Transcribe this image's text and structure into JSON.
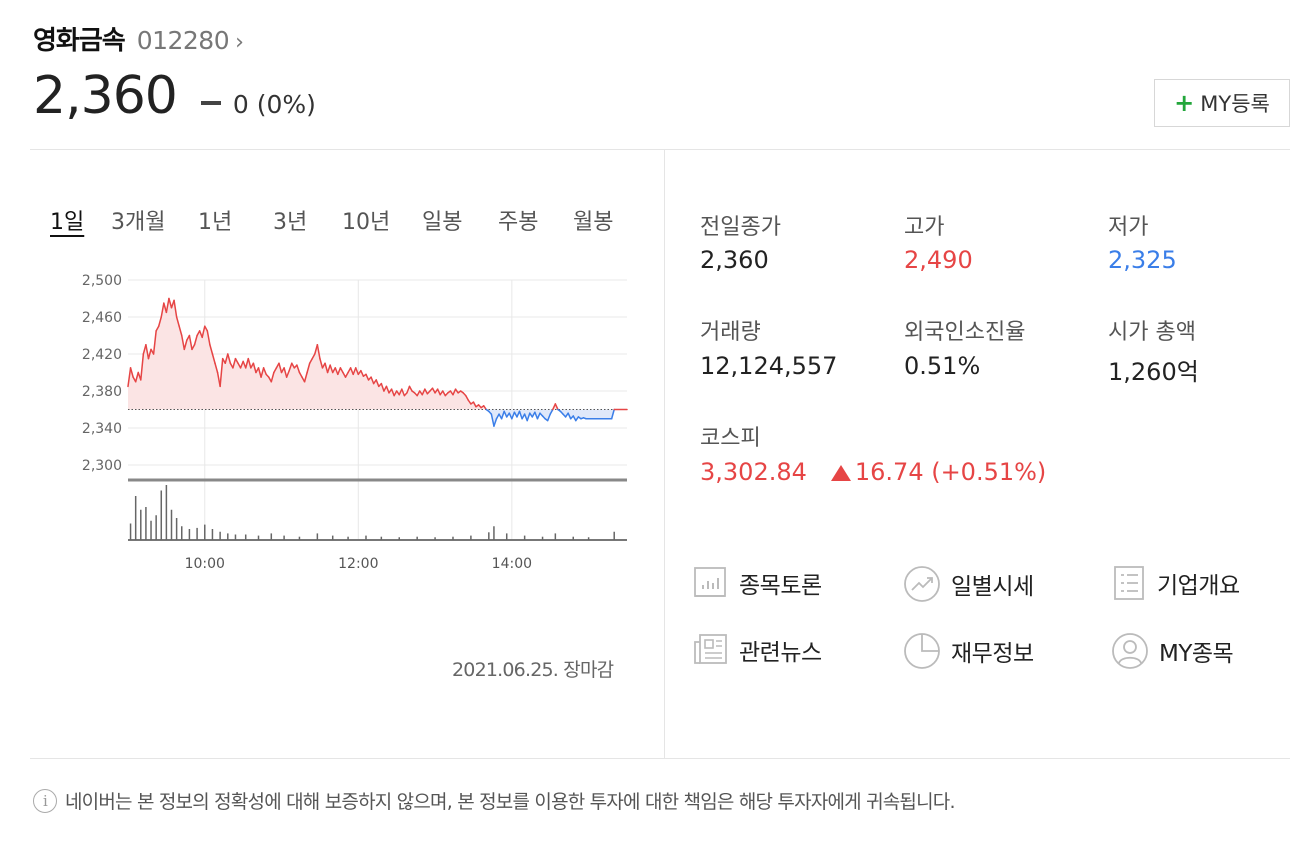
{
  "stock": {
    "name": "영화금속",
    "code": "012280",
    "price": "2,360",
    "change": "0 (0%)"
  },
  "my_button": "MY등록",
  "tabs": [
    "1일",
    "3개월",
    "1년",
    "3년",
    "10년",
    "일봉",
    "주봉",
    "월봉"
  ],
  "stats": {
    "prev_close": {
      "label": "전일종가",
      "value": "2,360"
    },
    "high": {
      "label": "고가",
      "value": "2,490"
    },
    "low": {
      "label": "저가",
      "value": "2,325"
    },
    "volume": {
      "label": "거래량",
      "value": "12,124,557"
    },
    "foreign": {
      "label": "외국인소진율",
      "value": "0.51%"
    },
    "market_cap": {
      "label": "시가 총액",
      "value": "1,260억"
    },
    "kospi": {
      "label": "코스피",
      "value": "3,302.84",
      "change": "16.74 (+0.51%)"
    }
  },
  "links": {
    "discussion": "종목토론",
    "daily_price": "일별시세",
    "company": "기업개요",
    "news": "관련뉴스",
    "finance": "재무정보",
    "my_stocks": "MY종목"
  },
  "chart_date": "2021.06.25. 장마감",
  "notice": "네이버는 본 정보의 정확성에 대해 보증하지 않으며, 본 정보를 이용한 투자에 대한 책임은 해당 투자자에게 귀속됩니다.",
  "colors": {
    "up": "#e64545",
    "down": "#3a7ee8",
    "fill_up": "#fbe4e4",
    "fill_down": "#dfe8fa"
  },
  "chart_data": {
    "type": "line",
    "x_label_ticks": [
      "10:00",
      "12:00",
      "14:00"
    ],
    "y_ticks": [
      "2,500",
      "2,460",
      "2,420",
      "2,380",
      "2,340",
      "2,300"
    ],
    "ylim": [
      2300,
      2500
    ],
    "baseline": 2360,
    "session": [
      "09:00",
      "15:30"
    ],
    "price_series": [
      [
        "09:00",
        2385
      ],
      [
        "09:02",
        2405
      ],
      [
        "09:04",
        2395
      ],
      [
        "09:06",
        2390
      ],
      [
        "09:08",
        2400
      ],
      [
        "09:10",
        2392
      ],
      [
        "09:12",
        2420
      ],
      [
        "09:14",
        2430
      ],
      [
        "09:16",
        2415
      ],
      [
        "09:18",
        2425
      ],
      [
        "09:20",
        2420
      ],
      [
        "09:22",
        2445
      ],
      [
        "09:24",
        2450
      ],
      [
        "09:26",
        2460
      ],
      [
        "09:28",
        2475
      ],
      [
        "09:30",
        2465
      ],
      [
        "09:32",
        2480
      ],
      [
        "09:34",
        2470
      ],
      [
        "09:36",
        2478
      ],
      [
        "09:38",
        2460
      ],
      [
        "09:40",
        2450
      ],
      [
        "09:42",
        2440
      ],
      [
        "09:44",
        2425
      ],
      [
        "09:46",
        2435
      ],
      [
        "09:48",
        2440
      ],
      [
        "09:50",
        2425
      ],
      [
        "09:52",
        2430
      ],
      [
        "09:54",
        2440
      ],
      [
        "09:56",
        2445
      ],
      [
        "09:58",
        2438
      ],
      [
        "10:00",
        2450
      ],
      [
        "10:02",
        2445
      ],
      [
        "10:04",
        2430
      ],
      [
        "10:06",
        2420
      ],
      [
        "10:08",
        2410
      ],
      [
        "10:10",
        2400
      ],
      [
        "10:12",
        2385
      ],
      [
        "10:14",
        2415
      ],
      [
        "10:16",
        2410
      ],
      [
        "10:18",
        2420
      ],
      [
        "10:20",
        2410
      ],
      [
        "10:22",
        2405
      ],
      [
        "10:24",
        2415
      ],
      [
        "10:26",
        2410
      ],
      [
        "10:28",
        2405
      ],
      [
        "10:30",
        2412
      ],
      [
        "10:32",
        2405
      ],
      [
        "10:34",
        2415
      ],
      [
        "10:36",
        2405
      ],
      [
        "10:38",
        2410
      ],
      [
        "10:40",
        2400
      ],
      [
        "10:42",
        2405
      ],
      [
        "10:44",
        2395
      ],
      [
        "10:46",
        2405
      ],
      [
        "10:48",
        2398
      ],
      [
        "10:50",
        2395
      ],
      [
        "10:52",
        2390
      ],
      [
        "10:54",
        2400
      ],
      [
        "10:56",
        2405
      ],
      [
        "10:58",
        2410
      ],
      [
        "11:00",
        2400
      ],
      [
        "11:02",
        2405
      ],
      [
        "11:04",
        2395
      ],
      [
        "11:06",
        2402
      ],
      [
        "11:08",
        2410
      ],
      [
        "11:10",
        2405
      ],
      [
        "11:12",
        2408
      ],
      [
        "11:14",
        2400
      ],
      [
        "11:16",
        2395
      ],
      [
        "11:18",
        2390
      ],
      [
        "11:20",
        2400
      ],
      [
        "11:22",
        2410
      ],
      [
        "11:24",
        2415
      ],
      [
        "11:26",
        2420
      ],
      [
        "11:28",
        2430
      ],
      [
        "11:30",
        2415
      ],
      [
        "11:32",
        2405
      ],
      [
        "11:34",
        2410
      ],
      [
        "11:36",
        2400
      ],
      [
        "11:38",
        2408
      ],
      [
        "11:40",
        2400
      ],
      [
        "11:42",
        2405
      ],
      [
        "11:44",
        2398
      ],
      [
        "11:46",
        2405
      ],
      [
        "11:48",
        2400
      ],
      [
        "11:50",
        2395
      ],
      [
        "11:52",
        2400
      ],
      [
        "11:54",
        2405
      ],
      [
        "11:56",
        2398
      ],
      [
        "11:58",
        2405
      ],
      [
        "12:00",
        2398
      ],
      [
        "12:02",
        2402
      ],
      [
        "12:04",
        2396
      ],
      [
        "12:06",
        2398
      ],
      [
        "12:08",
        2392
      ],
      [
        "12:10",
        2395
      ],
      [
        "12:12",
        2388
      ],
      [
        "12:14",
        2392
      ],
      [
        "12:16",
        2385
      ],
      [
        "12:18",
        2388
      ],
      [
        "12:20",
        2380
      ],
      [
        "12:22",
        2385
      ],
      [
        "12:24",
        2378
      ],
      [
        "12:26",
        2382
      ],
      [
        "12:28",
        2375
      ],
      [
        "12:30",
        2380
      ],
      [
        "12:32",
        2376
      ],
      [
        "12:34",
        2382
      ],
      [
        "12:36",
        2375
      ],
      [
        "12:38",
        2378
      ],
      [
        "12:40",
        2385
      ],
      [
        "12:42",
        2380
      ],
      [
        "12:44",
        2378
      ],
      [
        "12:46",
        2375
      ],
      [
        "12:48",
        2380
      ],
      [
        "12:50",
        2376
      ],
      [
        "12:52",
        2382
      ],
      [
        "12:54",
        2377
      ],
      [
        "12:56",
        2380
      ],
      [
        "12:58",
        2383
      ],
      [
        "13:00",
        2378
      ],
      [
        "13:02",
        2382
      ],
      [
        "13:04",
        2376
      ],
      [
        "13:06",
        2380
      ],
      [
        "13:08",
        2375
      ],
      [
        "13:10",
        2378
      ],
      [
        "13:12",
        2380
      ],
      [
        "13:14",
        2376
      ],
      [
        "13:16",
        2382
      ],
      [
        "13:18",
        2378
      ],
      [
        "13:20",
        2380
      ],
      [
        "13:22",
        2378
      ],
      [
        "13:24",
        2375
      ],
      [
        "13:26",
        2370
      ],
      [
        "13:28",
        2366
      ],
      [
        "13:30",
        2368
      ],
      [
        "13:32",
        2363
      ],
      [
        "13:34",
        2365
      ],
      [
        "13:36",
        2362
      ],
      [
        "13:38",
        2364
      ],
      [
        "13:40",
        2360
      ],
      [
        "13:42",
        2358
      ],
      [
        "13:44",
        2355
      ],
      [
        "13:46",
        2342
      ],
      [
        "13:48",
        2350
      ],
      [
        "13:50",
        2355
      ],
      [
        "13:52",
        2350
      ],
      [
        "13:54",
        2358
      ],
      [
        "13:56",
        2352
      ],
      [
        "13:58",
        2356
      ],
      [
        "14:00",
        2350
      ],
      [
        "14:02",
        2357
      ],
      [
        "14:04",
        2352
      ],
      [
        "14:06",
        2358
      ],
      [
        "14:08",
        2350
      ],
      [
        "14:10",
        2355
      ],
      [
        "14:12",
        2348
      ],
      [
        "14:14",
        2356
      ],
      [
        "14:16",
        2352
      ],
      [
        "14:18",
        2357
      ],
      [
        "14:20",
        2350
      ],
      [
        "14:22",
        2356
      ],
      [
        "14:24",
        2353
      ],
      [
        "14:26",
        2350
      ],
      [
        "14:28",
        2348
      ],
      [
        "14:30",
        2355
      ],
      [
        "14:32",
        2360
      ],
      [
        "14:34",
        2366
      ],
      [
        "14:36",
        2360
      ],
      [
        "14:38",
        2358
      ],
      [
        "14:40",
        2355
      ],
      [
        "14:42",
        2352
      ],
      [
        "14:44",
        2356
      ],
      [
        "14:46",
        2350
      ],
      [
        "14:48",
        2353
      ],
      [
        "14:50",
        2348
      ],
      [
        "14:52",
        2352
      ],
      [
        "14:54",
        2350
      ],
      [
        "14:56",
        2351
      ],
      [
        "14:58",
        2350
      ],
      [
        "15:00",
        2350
      ],
      [
        "15:10",
        2350
      ],
      [
        "15:18",
        2350
      ],
      [
        "15:20",
        2360
      ],
      [
        "15:30",
        2360
      ]
    ],
    "volume_bars": [
      [
        "09:02",
        0.3
      ],
      [
        "09:06",
        0.8
      ],
      [
        "09:10",
        0.55
      ],
      [
        "09:14",
        0.6
      ],
      [
        "09:18",
        0.35
      ],
      [
        "09:22",
        0.45
      ],
      [
        "09:26",
        0.9
      ],
      [
        "09:30",
        1.0
      ],
      [
        "09:34",
        0.55
      ],
      [
        "09:38",
        0.4
      ],
      [
        "09:42",
        0.25
      ],
      [
        "09:48",
        0.2
      ],
      [
        "09:54",
        0.22
      ],
      [
        "10:00",
        0.28
      ],
      [
        "10:06",
        0.2
      ],
      [
        "10:12",
        0.15
      ],
      [
        "10:18",
        0.12
      ],
      [
        "10:24",
        0.1
      ],
      [
        "10:32",
        0.1
      ],
      [
        "10:42",
        0.08
      ],
      [
        "10:52",
        0.12
      ],
      [
        "11:02",
        0.08
      ],
      [
        "11:14",
        0.06
      ],
      [
        "11:28",
        0.12
      ],
      [
        "11:40",
        0.08
      ],
      [
        "11:52",
        0.06
      ],
      [
        "12:06",
        0.08
      ],
      [
        "12:18",
        0.06
      ],
      [
        "12:32",
        0.05
      ],
      [
        "12:46",
        0.06
      ],
      [
        "13:00",
        0.05
      ],
      [
        "13:14",
        0.06
      ],
      [
        "13:28",
        0.08
      ],
      [
        "13:42",
        0.14
      ],
      [
        "13:46",
        0.25
      ],
      [
        "13:56",
        0.12
      ],
      [
        "14:10",
        0.08
      ],
      [
        "14:24",
        0.06
      ],
      [
        "14:34",
        0.12
      ],
      [
        "14:48",
        0.06
      ],
      [
        "15:00",
        0.05
      ],
      [
        "15:20",
        0.15
      ]
    ]
  }
}
